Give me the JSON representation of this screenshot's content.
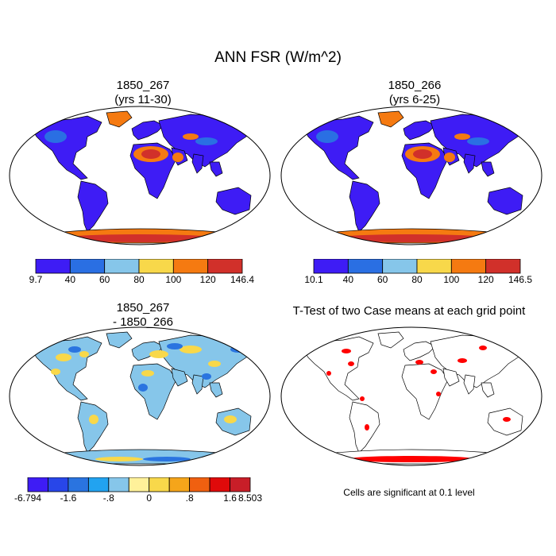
{
  "figure": {
    "title": "ANN FSR (W/m^2)",
    "panels": [
      {
        "id": "case1",
        "title_line1": "1850_267",
        "title_line2": "(yrs 11-30)"
      },
      {
        "id": "case2",
        "title_line1": "1850_266",
        "title_line2": "(yrs 6-25)"
      },
      {
        "id": "diff",
        "title_line1": "1850_267",
        "title_line2": "- 1850_266"
      },
      {
        "id": "ttest",
        "title_line1": "T-Test of two Case means at each grid point",
        "title_line2": ""
      }
    ],
    "ttest_note": "Cells are significant at 0.1 level"
  },
  "colorbars": {
    "case1": {
      "colors": [
        "#3e1cf5",
        "#2a6fe3",
        "#86c6ea",
        "#f8d84a",
        "#f57a11",
        "#d1302a"
      ],
      "labels": [
        "9.7",
        "40",
        "60",
        "80",
        "100",
        "120",
        "146.4"
      ]
    },
    "case2": {
      "colors": [
        "#3e1cf5",
        "#2a6fe3",
        "#86c6ea",
        "#f8d84a",
        "#f57a11",
        "#d1302a"
      ],
      "labels": [
        "10.1",
        "40",
        "60",
        "80",
        "100",
        "120",
        "146.5"
      ]
    },
    "diff": {
      "colors": [
        "#3e1cf5",
        "#2846e9",
        "#2a74e0",
        "#22a3f0",
        "#86c6ea",
        "#fff19a",
        "#f8d84a",
        "#f5a51a",
        "#f06010",
        "#e00a0a",
        "#c81e28"
      ],
      "labels": [
        "-6.794",
        "-1.6",
        "-.8",
        "0",
        ".8",
        "1.6",
        "8.503"
      ]
    }
  },
  "map_colors": {
    "land_low": "#3e1cf5",
    "land_mid": "#2a6fe3",
    "desert": "#f57a11",
    "desert_hot": "#d1302a",
    "antarctica": "#f57a11",
    "significance": "#ff0000",
    "diff_base": "#86c6ea",
    "diff_pos": "#f8d84a",
    "diff_neg": "#2a74e0"
  }
}
